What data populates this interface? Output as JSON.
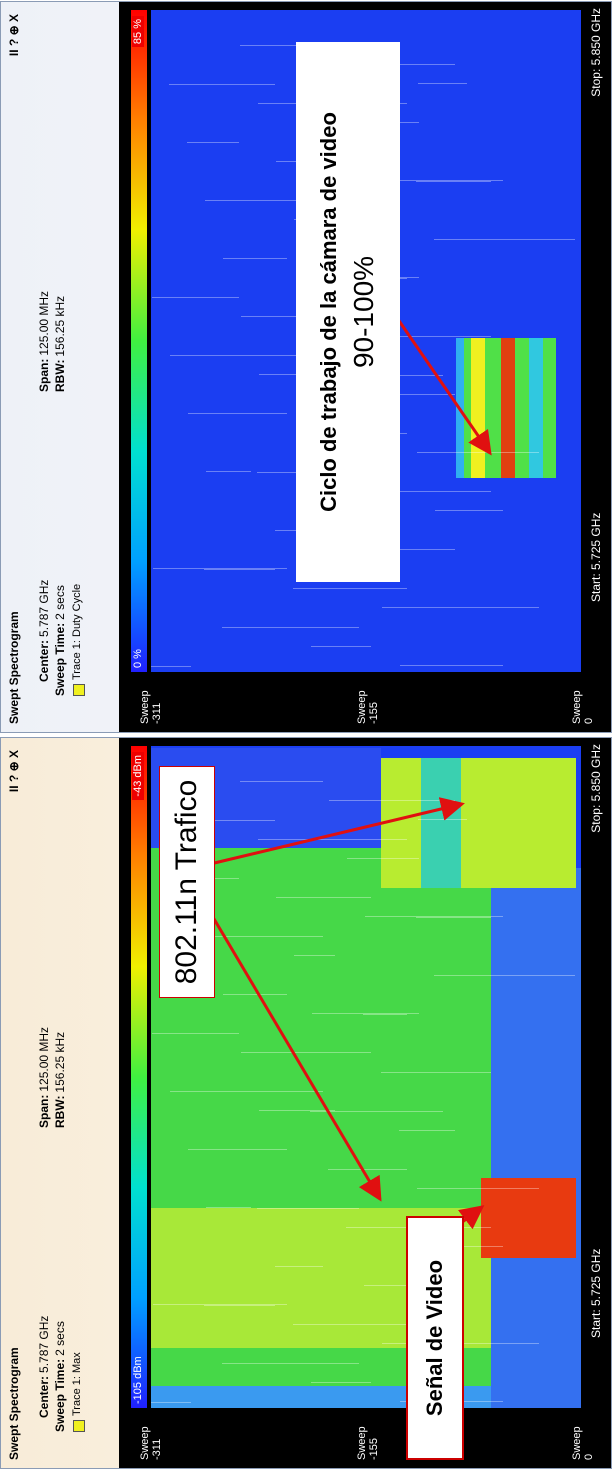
{
  "panels": [
    {
      "title": "Swept Spectrogram",
      "controls": "II ? ⊕ X",
      "center_label": "Center:",
      "center": "5.787 GHz",
      "span_label": "Span:",
      "span": "125.00 MHz",
      "sweep_time_label": "Sweep Time:",
      "sweep_time": "2 secs",
      "rbw_label": "RBW:",
      "rbw": "156.25 kHz",
      "trace": "Trace 1: Max",
      "scale_min": "-105 dBm",
      "scale_max": "-43 dBm",
      "sweep_ticks": [
        {
          "label": "Sweep",
          "value": "-311"
        },
        {
          "label": "Sweep",
          "value": "-155"
        },
        {
          "label": "Sweep",
          "value": "0"
        }
      ],
      "start": "Start: 5.725 GHz",
      "stop": "Stop: 5.850 GHz",
      "annotations": [
        "802.11n Trafico",
        "Señal de Video"
      ]
    },
    {
      "title": "Swept Spectrogram",
      "controls": "II ? ⊕ X",
      "center_label": "Center:",
      "center": "5.787 GHz",
      "span_label": "Span:",
      "span": "125.00 MHz",
      "sweep_time_label": "Sweep Time:",
      "sweep_time": "2 secs",
      "rbw_label": "RBW:",
      "rbw": "156.25 kHz",
      "trace": "Trace 1: Duty Cycle",
      "scale_min": "0 %",
      "scale_max": "85 %",
      "sweep_ticks": [
        {
          "label": "Sweep",
          "value": "-311"
        },
        {
          "label": "Sweep",
          "value": "-155"
        },
        {
          "label": "Sweep",
          "value": "0"
        }
      ],
      "start": "Start: 5.725 GHz",
      "stop": "Stop: 5.850 GHz",
      "annotations": [
        "Ciclo de trabajo de la cámara de video",
        "90-100%"
      ]
    }
  ]
}
